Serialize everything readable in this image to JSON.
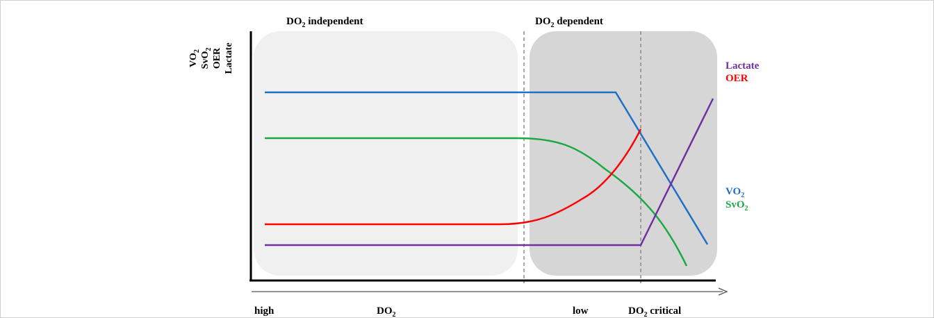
{
  "y_axis_labels": [
    {
      "base": "VO",
      "sub": "2"
    },
    {
      "base": "SvO",
      "sub": "2"
    },
    {
      "base": "OER",
      "sub": ""
    },
    {
      "base": "Lactate",
      "sub": ""
    }
  ],
  "regions": {
    "independent": {
      "base": "DO",
      "sub": "2",
      "rest": " independent"
    },
    "dependent": {
      "base": "DO",
      "sub": "2",
      "rest": " dependent"
    }
  },
  "right_legend_top": {
    "lactate": {
      "text": "Lactate",
      "color": "#7030a0"
    },
    "oer": {
      "text": "OER",
      "color": "#ff0000"
    }
  },
  "right_legend_bottom": {
    "vo2": {
      "base": "VO",
      "sub": "2",
      "color": "#1f6fc5"
    },
    "svo2": {
      "base": "SvO",
      "sub": "2",
      "color": "#1aa843"
    }
  },
  "x_axis_labels": {
    "high": "high",
    "do2": {
      "base": "DO",
      "sub": "2"
    },
    "low": "low",
    "critical": {
      "base": "DO",
      "sub": "2",
      "rest": " critical"
    }
  },
  "colors": {
    "vo2": "#1f6fc5",
    "svo2": "#1aa843",
    "oer": "#ff0000",
    "lactate": "#7030a0",
    "region_light": "#f0f0f0",
    "region_dark": "#d6d6d6"
  }
}
